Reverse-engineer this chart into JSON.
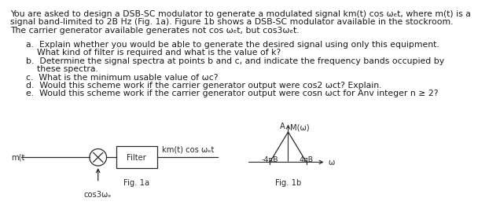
{
  "para_line1": "You are asked to design a DSB-SC modulator to generate a modulated signal km(t) cos ωₑt, where m(t) is a",
  "para_line2": "signal band-limited to 2B Hz (Fig. 1a). Figure 1b shows a DSB-SC modulator available in the stockroom.",
  "para_line3": "The carrier generator available generates not cos ωₑt, but cos3ωₑt.",
  "q_a1": "a.  Explain whether you would be able to generate the desired signal using only this equipment.",
  "q_a2": "    What kind of filter is required and what is the value of k?",
  "q_b1": "b.  Determine the signal spectra at points b and c, and indicate the frequency bands occupied by",
  "q_b2": "    these spectra.",
  "q_c": "c.  What is the minimum usable value of ωc?",
  "q_d": "d.  Would this scheme work if the carrier generator output were cos2 ωct? Explain.",
  "q_e": "e.  Would this scheme work if the carrier generator output were cosn ωct for Αnv integer n ≥ 2?",
  "mit_label": "m(t",
  "output_label": "km(t) cos ωₑt",
  "filter_label": "Filter",
  "carrier_label": "cos3ωₑ",
  "fig1a_label": "Fig. 1a",
  "fig1b_label": "Fig. 1b",
  "spectrum_label": "M(ω)",
  "spectrum_A_label": "A",
  "spectrum_x_label": "ω",
  "neg_freq_label": "-4πB",
  "pos_freq_label": "4πB",
  "bg_color": "#ffffff",
  "text_color": "#1a1a1a",
  "diagram_text_color": "#2a2a2a",
  "fs_body": 7.8,
  "fs_diagram": 7.2,
  "fs_small": 6.8
}
